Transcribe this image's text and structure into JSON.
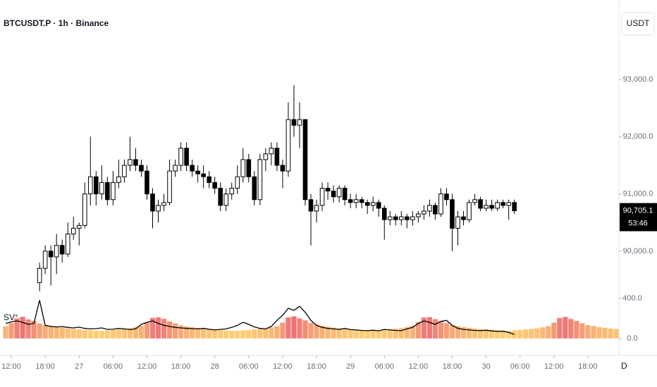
{
  "chart_data": [
    {
      "type": "candlestick",
      "title": "BTCUSDT.P · 1h · Binance",
      "currency": "USDT",
      "up_color": "#ffffff",
      "down_color": "#000000",
      "border_color": "#000000",
      "grid": false,
      "xlim": [
        -2,
        107.5
      ],
      "ylim": [
        88978,
        94390
      ],
      "yticks": [
        {
          "value": 90000,
          "label": "90,000.0"
        },
        {
          "value": 91000,
          "label": "91,000.0"
        },
        {
          "value": 92000,
          "label": "92,000.0"
        },
        {
          "value": 93000,
          "label": "93,000.0"
        }
      ],
      "last_price": {
        "value": 90705.1,
        "label": "90,705.1"
      },
      "countdown": "53:46",
      "x": [
        5,
        6,
        7,
        8,
        9,
        10,
        11,
        12,
        13,
        14,
        15,
        16,
        17,
        18,
        19,
        20,
        21,
        22,
        23,
        24,
        25,
        26,
        27,
        28,
        29,
        30,
        31,
        32,
        33,
        34,
        35,
        36,
        37,
        38,
        39,
        40,
        41,
        42,
        43,
        44,
        45,
        46,
        47,
        48,
        49,
        50,
        51,
        52,
        53,
        54,
        55,
        56,
        57,
        58,
        59,
        60,
        61,
        62,
        63,
        64,
        65,
        66,
        67,
        68,
        69,
        70,
        71,
        72,
        73,
        74,
        75,
        76,
        77,
        78,
        79,
        80,
        81,
        82,
        83,
        84,
        85,
        86,
        87,
        88,
        89
      ],
      "open": [
        89450,
        89700,
        90000,
        89900,
        90100,
        89950,
        90300,
        90400,
        90450,
        91000,
        91300,
        91000,
        91200,
        90900,
        91200,
        91300,
        91500,
        91600,
        91500,
        91400,
        91000,
        90700,
        90800,
        90850,
        91400,
        91500,
        91800,
        91500,
        91400,
        91350,
        91300,
        91200,
        91100,
        90800,
        91000,
        91100,
        91300,
        91600,
        91300,
        90900,
        91600,
        91700,
        91800,
        91500,
        91400,
        92300,
        92200,
        92300,
        90900,
        90700,
        90800,
        91100,
        91050,
        90950,
        91100,
        90900,
        90850,
        90900,
        90850,
        90800,
        90850,
        90750,
        90550,
        90600,
        90550,
        90600,
        90550,
        90600,
        90650,
        90700,
        90800,
        90650,
        91000,
        90900,
        90400,
        90600,
        90550,
        90850,
        90900,
        90750,
        90800,
        90750,
        90850,
        90800,
        90850
      ],
      "high": [
        89800,
        90100,
        90100,
        90300,
        90200,
        90500,
        90600,
        90500,
        91200,
        92000,
        91400,
        91500,
        91300,
        91400,
        91600,
        91600,
        92000,
        91800,
        91600,
        91500,
        91100,
        90900,
        91000,
        91600,
        91600,
        91900,
        91900,
        91600,
        91500,
        91500,
        91400,
        91300,
        91200,
        91100,
        91200,
        91500,
        91800,
        91700,
        91400,
        91700,
        91800,
        91900,
        91900,
        91600,
        92600,
        92900,
        92600,
        92300,
        91000,
        90900,
        91200,
        91200,
        91150,
        91150,
        91150,
        91000,
        91000,
        90950,
        90900,
        90950,
        90900,
        90800,
        90700,
        90650,
        90700,
        90650,
        90700,
        90700,
        90800,
        90900,
        90850,
        91100,
        91100,
        91000,
        90700,
        90700,
        90900,
        91000,
        90950,
        90900,
        90900,
        90900,
        90900,
        90900,
        90900
      ],
      "low": [
        89300,
        89600,
        89400,
        89600,
        89800,
        89900,
        90200,
        90100,
        90400,
        90800,
        90800,
        90900,
        90800,
        90800,
        91100,
        91200,
        91400,
        91400,
        91300,
        90900,
        90400,
        90500,
        90700,
        90800,
        91300,
        91400,
        91400,
        91300,
        91200,
        91100,
        91100,
        91000,
        90700,
        90700,
        90900,
        91000,
        91200,
        91200,
        90800,
        90800,
        91400,
        91500,
        91400,
        91100,
        91300,
        92000,
        91800,
        90800,
        90100,
        90500,
        90700,
        90900,
        90850,
        90850,
        90800,
        90750,
        90750,
        90750,
        90650,
        90700,
        90600,
        90200,
        90450,
        90450,
        90450,
        90400,
        90450,
        90500,
        90550,
        90600,
        90550,
        90600,
        90800,
        90000,
        90100,
        90450,
        90500,
        90800,
        90700,
        90700,
        90700,
        90700,
        90750,
        90550,
        90650
      ],
      "close": [
        89700,
        90000,
        89900,
        90100,
        89950,
        90300,
        90400,
        90450,
        91000,
        91300,
        91000,
        91200,
        90900,
        91200,
        91300,
        91500,
        91600,
        91500,
        91400,
        91000,
        90700,
        90800,
        90850,
        91400,
        91500,
        91800,
        91500,
        91400,
        91350,
        91300,
        91200,
        91100,
        90800,
        91000,
        91100,
        91300,
        91600,
        91300,
        90900,
        91600,
        91700,
        91800,
        91500,
        91400,
        92300,
        92200,
        92300,
        90900,
        90700,
        90800,
        91100,
        91050,
        90950,
        91100,
        90900,
        90850,
        90900,
        90850,
        90800,
        90850,
        90750,
        90550,
        90600,
        90550,
        90600,
        90550,
        90600,
        90650,
        90700,
        90800,
        90650,
        91000,
        90900,
        90400,
        90600,
        90550,
        90850,
        90900,
        90750,
        90800,
        90750,
        90850,
        90800,
        90850,
        90705.1
      ]
    },
    {
      "type": "bar-line",
      "title": "SV°",
      "interval_button": "D",
      "grid": false,
      "xlim": [
        -2,
        107.5
      ],
      "ylim": [
        0,
        420
      ],
      "yticks": [
        {
          "value": 0,
          "label": "0.0"
        },
        {
          "value": 400,
          "label": "400.0"
        }
      ],
      "xticks": [
        {
          "value": 0,
          "label": "12:00"
        },
        {
          "value": 6,
          "label": "18:00"
        },
        {
          "value": 12,
          "label": "27"
        },
        {
          "value": 18,
          "label": "06:00"
        },
        {
          "value": 24,
          "label": "12:00"
        },
        {
          "value": 30,
          "label": "18:00"
        },
        {
          "value": 36,
          "label": "28"
        },
        {
          "value": 42,
          "label": "06:00"
        },
        {
          "value": 48,
          "label": "12:00"
        },
        {
          "value": 54,
          "label": "18:00"
        },
        {
          "value": 60,
          "label": "29"
        },
        {
          "value": 66,
          "label": "06:00"
        },
        {
          "value": 72,
          "label": "12:00"
        },
        {
          "value": 78,
          "label": "18:00"
        },
        {
          "value": 84,
          "label": "30"
        },
        {
          "value": 90,
          "label": "06:00"
        },
        {
          "value": 96,
          "label": "12:00"
        },
        {
          "value": 102,
          "label": "18:00"
        }
      ],
      "bars": {
        "color_low": "#ffcf73",
        "color_high": "#ee7378",
        "x": [
          -1,
          0,
          1,
          2,
          3,
          4,
          5,
          6,
          7,
          8,
          9,
          10,
          11,
          12,
          13,
          14,
          15,
          16,
          17,
          18,
          19,
          20,
          21,
          22,
          23,
          24,
          25,
          26,
          27,
          28,
          29,
          30,
          31,
          32,
          33,
          34,
          35,
          36,
          37,
          38,
          39,
          40,
          41,
          42,
          43,
          44,
          45,
          46,
          47,
          48,
          49,
          50,
          51,
          52,
          53,
          54,
          55,
          56,
          57,
          58,
          59,
          60,
          61,
          62,
          63,
          64,
          65,
          66,
          67,
          68,
          69,
          70,
          71,
          72,
          73,
          74,
          75,
          76,
          77,
          78,
          79,
          80,
          81,
          82,
          83,
          84,
          85,
          86,
          87,
          88,
          89,
          90,
          91,
          92,
          93,
          94,
          95,
          96,
          97,
          98,
          99,
          100,
          101,
          102,
          103,
          104,
          105,
          106,
          107
        ],
        "values": [
          120,
          155,
          200,
          215,
          190,
          175,
          150,
          135,
          125,
          115,
          108,
          100,
          95,
          90,
          86,
          82,
          78,
          76,
          80,
          85,
          90,
          96,
          102,
          112,
          125,
          160,
          205,
          210,
          195,
          170,
          150,
          130,
          120,
          112,
          105,
          98,
          92,
          88,
          84,
          80,
          77,
          75,
          79,
          84,
          90,
          95,
          100,
          110,
          122,
          158,
          210,
          220,
          200,
          180,
          155,
          138,
          126,
          116,
          108,
          100,
          94,
          89,
          85,
          81,
          78,
          76,
          80,
          86,
          91,
          97,
          103,
          113,
          124,
          162,
          208,
          212,
          192,
          172,
          152,
          134,
          124,
          114,
          106,
          99,
          93,
          89,
          85,
          81,
          77,
          75,
          80,
          85,
          90,
          96,
          101,
          111,
          123,
          157,
          203,
          214,
          194,
          174,
          151,
          133,
          123,
          113,
          106,
          99,
          94
        ]
      },
      "line": {
        "color": "#000000",
        "x": [
          -1,
          0,
          1,
          2,
          3,
          4,
          5,
          6,
          7,
          8,
          9,
          10,
          11,
          12,
          13,
          14,
          15,
          16,
          17,
          18,
          19,
          20,
          21,
          22,
          23,
          24,
          25,
          26,
          27,
          28,
          29,
          30,
          31,
          32,
          33,
          34,
          35,
          36,
          37,
          38,
          39,
          40,
          41,
          42,
          43,
          44,
          45,
          46,
          47,
          48,
          49,
          50,
          51,
          52,
          53,
          54,
          55,
          56,
          57,
          58,
          59,
          60,
          61,
          62,
          63,
          64,
          65,
          66,
          67,
          68,
          69,
          70,
          71,
          72,
          73,
          74,
          75,
          76,
          77,
          78,
          79,
          80,
          81,
          82,
          83,
          84,
          85,
          86,
          87,
          88,
          89
        ],
        "values": [
          150,
          165,
          175,
          160,
          140,
          150,
          380,
          130,
          120,
          115,
          118,
          110,
          105,
          112,
          100,
          95,
          98,
          105,
          90,
          92,
          100,
          95,
          88,
          96,
          140,
          160,
          175,
          150,
          130,
          120,
          110,
          105,
          100,
          98,
          95,
          100,
          92,
          85,
          90,
          95,
          110,
          130,
          160,
          140,
          115,
          100,
          95,
          120,
          180,
          230,
          300,
          280,
          320,
          260,
          180,
          130,
          110,
          100,
          95,
          90,
          100,
          88,
          85,
          80,
          78,
          82,
          76,
          90,
          85,
          80,
          78,
          95,
          110,
          150,
          175,
          160,
          140,
          170,
          180,
          130,
          100,
          90,
          85,
          80,
          78,
          82,
          75,
          70,
          72,
          60,
          40
        ]
      }
    }
  ]
}
